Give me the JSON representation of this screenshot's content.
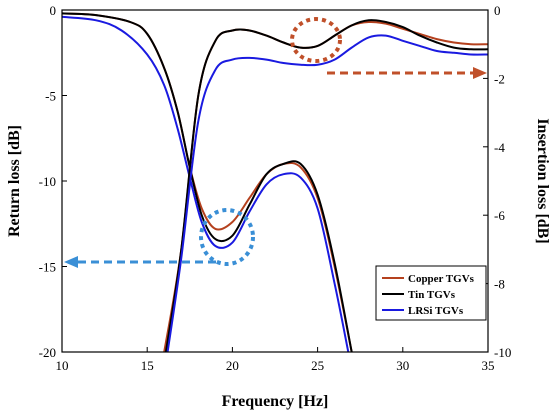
{
  "chart_data": {
    "type": "line",
    "xlabel": "Frequency [Hz]",
    "ylabel_left": "Return loss [dB]",
    "ylabel_right": "Insertion loss [dB]",
    "xlim": [
      10,
      35
    ],
    "ylim_left": [
      -20,
      0
    ],
    "ylim_right": [
      -10,
      0
    ],
    "x_ticks": [
      10,
      15,
      20,
      25,
      30,
      35
    ],
    "y_left_ticks": [
      0,
      -5,
      -10,
      -15,
      -20
    ],
    "y_right_ticks": [
      0,
      -2,
      -4,
      -6,
      -8,
      -10
    ],
    "legend_position": "bottom-right",
    "series": [
      {
        "name": "Copper TGVs",
        "axis": "right",
        "color": "#b5411e",
        "points": [
          [
            10,
            -0.1
          ],
          [
            12,
            -0.15
          ],
          [
            14,
            -0.35
          ],
          [
            15,
            -0.7
          ],
          [
            16,
            -1.7
          ],
          [
            16.8,
            -3.0
          ],
          [
            17.5,
            -4.6
          ],
          [
            18.2,
            -5.8
          ],
          [
            19,
            -6.4
          ],
          [
            20,
            -6.2
          ],
          [
            21,
            -5.5
          ],
          [
            22,
            -4.8
          ],
          [
            23,
            -4.5
          ],
          [
            24,
            -4.6
          ],
          [
            25,
            -5.5
          ],
          [
            26,
            -7.5
          ],
          [
            27,
            -10
          ]
        ]
      },
      {
        "name": "Tin TGVs",
        "axis": "right",
        "color": "#000000",
        "points": [
          [
            10,
            -0.1
          ],
          [
            12,
            -0.15
          ],
          [
            14,
            -0.35
          ],
          [
            15,
            -0.7
          ],
          [
            16,
            -1.7
          ],
          [
            16.8,
            -3.0
          ],
          [
            17.5,
            -4.6
          ],
          [
            18.2,
            -6.0
          ],
          [
            19,
            -6.7
          ],
          [
            20,
            -6.6
          ],
          [
            21,
            -5.7
          ],
          [
            22,
            -4.8
          ],
          [
            23,
            -4.5
          ],
          [
            24,
            -4.5
          ],
          [
            25,
            -5.4
          ],
          [
            26,
            -7.4
          ],
          [
            27,
            -10
          ]
        ]
      },
      {
        "name": "LRSi TGVs",
        "axis": "right",
        "color": "#1a1ae0",
        "points": [
          [
            10,
            -0.2
          ],
          [
            12,
            -0.3
          ],
          [
            13.5,
            -0.6
          ],
          [
            15,
            -1.3
          ],
          [
            16,
            -2.2
          ],
          [
            16.8,
            -3.5
          ],
          [
            17.5,
            -4.9
          ],
          [
            18.2,
            -6.2
          ],
          [
            19,
            -6.9
          ],
          [
            20,
            -6.8
          ],
          [
            21,
            -5.9
          ],
          [
            22,
            -5.1
          ],
          [
            23,
            -4.8
          ],
          [
            24,
            -4.9
          ],
          [
            25,
            -5.8
          ],
          [
            26,
            -8.0
          ],
          [
            26.8,
            -10
          ]
        ]
      },
      {
        "name": "Copper TGVs",
        "axis": "left",
        "color": "#b5411e",
        "points": [
          [
            16,
            -20
          ],
          [
            17,
            -14
          ],
          [
            18,
            -5
          ],
          [
            19,
            -1.8
          ],
          [
            20,
            -1.2
          ],
          [
            21,
            -1.2
          ],
          [
            22,
            -1.5
          ],
          [
            23,
            -1.9
          ],
          [
            24,
            -2.2
          ],
          [
            25,
            -2.1
          ],
          [
            26,
            -1.5
          ],
          [
            27,
            -0.9
          ],
          [
            28,
            -0.7
          ],
          [
            29,
            -0.8
          ],
          [
            30,
            -1.1
          ],
          [
            31,
            -1.4
          ],
          [
            32,
            -1.7
          ],
          [
            33,
            -1.9
          ],
          [
            34,
            -2.0
          ],
          [
            35,
            -2.0
          ]
        ]
      },
      {
        "name": "Tin TGVs",
        "axis": "left",
        "color": "#000000",
        "points": [
          [
            16.1,
            -20
          ],
          [
            17,
            -14
          ],
          [
            18,
            -5
          ],
          [
            19,
            -1.8
          ],
          [
            20,
            -1.2
          ],
          [
            21,
            -1.2
          ],
          [
            22,
            -1.5
          ],
          [
            23,
            -1.9
          ],
          [
            24,
            -2.2
          ],
          [
            25,
            -2.1
          ],
          [
            26,
            -1.5
          ],
          [
            27,
            -0.9
          ],
          [
            28,
            -0.6
          ],
          [
            29,
            -0.7
          ],
          [
            30,
            -1.0
          ],
          [
            31,
            -1.5
          ],
          [
            32,
            -1.9
          ],
          [
            33,
            -2.2
          ],
          [
            34,
            -2.3
          ],
          [
            35,
            -2.3
          ]
        ]
      },
      {
        "name": "LRSi TGVs",
        "axis": "left",
        "color": "#1a1ae0",
        "points": [
          [
            16.2,
            -20
          ],
          [
            17,
            -14.5
          ],
          [
            18,
            -6.5
          ],
          [
            19,
            -3.5
          ],
          [
            20,
            -2.9
          ],
          [
            21,
            -2.8
          ],
          [
            22,
            -2.9
          ],
          [
            23,
            -3.1
          ],
          [
            24,
            -3.2
          ],
          [
            25,
            -3.2
          ],
          [
            26,
            -2.9
          ],
          [
            27,
            -2.2
          ],
          [
            28,
            -1.6
          ],
          [
            29,
            -1.5
          ],
          [
            30,
            -1.8
          ],
          [
            31,
            -2.1
          ],
          [
            32,
            -2.4
          ],
          [
            33,
            -2.5
          ],
          [
            34,
            -2.6
          ],
          [
            35,
            -2.6
          ]
        ]
      }
    ]
  }
}
